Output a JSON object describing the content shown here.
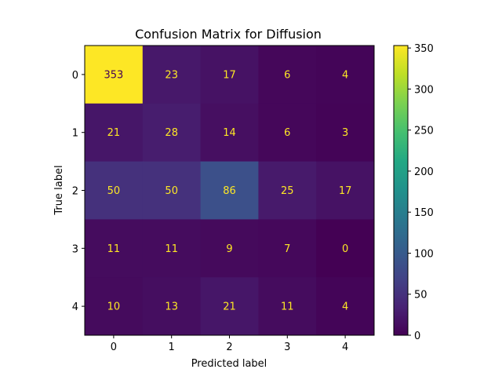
{
  "chart_data": {
    "type": "heatmap",
    "title": "Confusion Matrix for Diffusion",
    "xlabel": "Predicted label",
    "ylabel": "True label",
    "x_categories": [
      "0",
      "1",
      "2",
      "3",
      "4"
    ],
    "y_categories": [
      "0",
      "1",
      "2",
      "3",
      "4"
    ],
    "values": [
      [
        353,
        23,
        17,
        6,
        4
      ],
      [
        21,
        28,
        14,
        6,
        3
      ],
      [
        50,
        50,
        86,
        25,
        17
      ],
      [
        11,
        11,
        9,
        7,
        0
      ],
      [
        10,
        13,
        21,
        11,
        4
      ]
    ],
    "colormap": "viridis",
    "color_range": [
      0,
      353
    ],
    "colorbar_ticks": [
      0,
      50,
      100,
      150,
      200,
      250,
      300,
      350
    ],
    "grid": false,
    "colors": {
      "low_value_text": "#fde725",
      "high_value_text": "#440154"
    }
  }
}
